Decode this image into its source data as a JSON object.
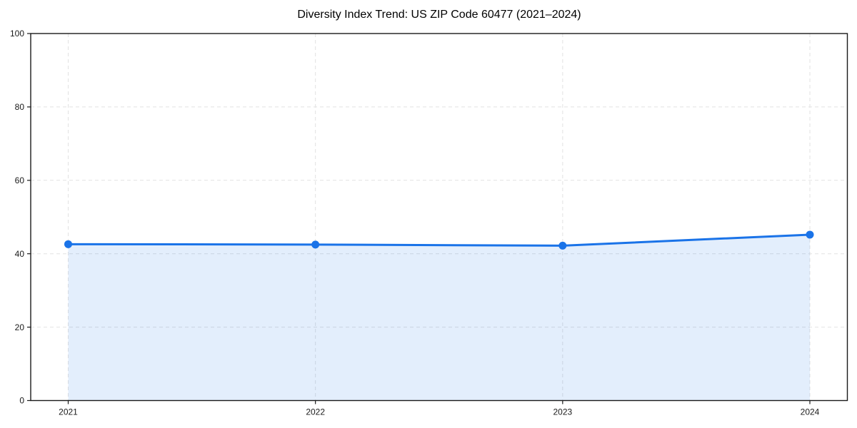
{
  "chart_data": {
    "type": "line",
    "title": "Diversity Index Trend: US ZIP Code 60477 (2021–2024)",
    "series_name": "Diversity Index",
    "categories": [
      "2021",
      "2022",
      "2023",
      "2024"
    ],
    "values": [
      42.6,
      42.5,
      42.2,
      45.2
    ],
    "xlabel": "",
    "ylabel": "",
    "ylim": [
      0,
      100
    ],
    "yticks": [
      0,
      20,
      40,
      60,
      80,
      100
    ],
    "grid": "dashed-both-axes",
    "legend": "none",
    "area_fill": true,
    "markers": "circle",
    "colors": {
      "line": "#1a73e8",
      "marker": "#1a73e8",
      "area_fill": "#1a73e8",
      "area_fill_opacity": 0.12,
      "grid": "#e2e2e2",
      "axis": "#1a1a1a",
      "tick_label": "#1a1a1a",
      "title": "#000000",
      "background": "#ffffff"
    }
  }
}
